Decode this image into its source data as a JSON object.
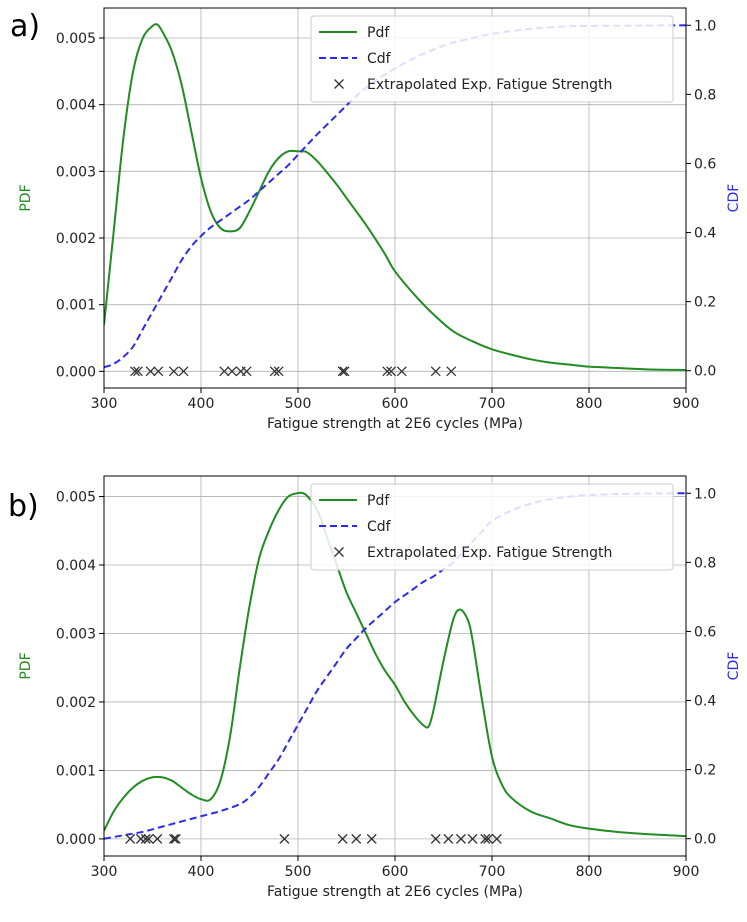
{
  "chart_data": [
    {
      "panel_label": "a)",
      "type": "line",
      "xlabel": "Fatigue strength at 2E6 cycles (MPa)",
      "ylabel_left": "PDF",
      "ylabel_right": "CDF",
      "xlim": [
        300,
        900
      ],
      "ylim_left": [
        -0.00025,
        0.00545
      ],
      "ylim_right": [
        -0.05,
        1.05
      ],
      "xticks": [
        "300",
        "400",
        "500",
        "600",
        "700",
        "800",
        "900"
      ],
      "yticks_left": [
        "0.000",
        "0.001",
        "0.002",
        "0.003",
        "0.004",
        "0.005"
      ],
      "yticks_right": [
        "0.0",
        "0.2",
        "0.4",
        "0.6",
        "0.8",
        "1.0"
      ],
      "grid": true,
      "legend_position": "top-right",
      "colors": {
        "pdf": "#228b22",
        "cdf": "#2b2bf0",
        "points": "#333333"
      },
      "series": [
        {
          "name": "Pdf",
          "axis": "left",
          "style": "solid",
          "x": [
            300,
            310,
            320,
            330,
            340,
            350,
            355,
            360,
            370,
            380,
            390,
            400,
            410,
            420,
            430,
            440,
            450,
            460,
            470,
            480,
            490,
            500,
            505,
            510,
            520,
            530,
            540,
            550,
            560,
            570,
            580,
            590,
            600,
            620,
            640,
            660,
            680,
            700,
            720,
            740,
            760,
            780,
            800,
            830,
            860,
            900
          ],
          "y": [
            0.0007,
            0.0021,
            0.0035,
            0.0045,
            0.005,
            0.00518,
            0.0052,
            0.0051,
            0.0048,
            0.0043,
            0.0036,
            0.0029,
            0.0024,
            0.00215,
            0.0021,
            0.00215,
            0.0024,
            0.0027,
            0.003,
            0.0032,
            0.0033,
            0.0033,
            0.0033,
            0.00328,
            0.00315,
            0.00298,
            0.0028,
            0.0026,
            0.0024,
            0.0022,
            0.00198,
            0.00175,
            0.0015,
            0.00115,
            0.00085,
            0.0006,
            0.00045,
            0.00033,
            0.00025,
            0.00018,
            0.00013,
            0.0001,
            7e-05,
            5e-05,
            3e-05,
            2e-05
          ]
        },
        {
          "name": "Cdf",
          "axis": "right",
          "style": "dashed",
          "x": [
            300,
            310,
            320,
            330,
            340,
            350,
            360,
            370,
            380,
            390,
            400,
            410,
            420,
            430,
            440,
            450,
            460,
            470,
            480,
            490,
            500,
            510,
            520,
            540,
            560,
            580,
            600,
            620,
            640,
            660,
            680,
            700,
            720,
            740,
            760,
            780,
            800,
            850,
            900
          ],
          "y": [
            0.01,
            0.02,
            0.04,
            0.07,
            0.12,
            0.17,
            0.22,
            0.27,
            0.32,
            0.36,
            0.39,
            0.415,
            0.435,
            0.455,
            0.475,
            0.495,
            0.52,
            0.545,
            0.57,
            0.595,
            0.625,
            0.655,
            0.685,
            0.74,
            0.795,
            0.84,
            0.875,
            0.905,
            0.93,
            0.95,
            0.963,
            0.975,
            0.983,
            0.99,
            0.994,
            0.997,
            0.998,
            0.999,
            1.0
          ]
        },
        {
          "name": "Extrapolated Exp. Fatigue Strength",
          "axis": "left",
          "style": "markers",
          "x": [
            332,
            335,
            348,
            356,
            372,
            382,
            424,
            432,
            441,
            447,
            476,
            480,
            546,
            548,
            592,
            596,
            607,
            642,
            658
          ],
          "y": [
            0,
            0,
            0,
            0,
            0,
            0,
            0,
            0,
            0,
            0,
            0,
            0,
            0,
            0,
            0,
            0,
            0,
            0,
            0
          ]
        }
      ]
    },
    {
      "panel_label": "b)",
      "type": "line",
      "xlabel": "Fatigue strength at 2E6 cycles (MPa)",
      "ylabel_left": "PDF",
      "ylabel_right": "CDF",
      "xlim": [
        300,
        900
      ],
      "ylim_left": [
        -0.00025,
        0.0053
      ],
      "ylim_right": [
        -0.05,
        1.05
      ],
      "xticks": [
        "300",
        "400",
        "500",
        "600",
        "700",
        "800",
        "900"
      ],
      "yticks_left": [
        "0.000",
        "0.001",
        "0.002",
        "0.003",
        "0.004",
        "0.005"
      ],
      "yticks_right": [
        "0.0",
        "0.2",
        "0.4",
        "0.6",
        "0.8",
        "1.0"
      ],
      "grid": true,
      "legend_position": "top-right",
      "colors": {
        "pdf": "#228b22",
        "cdf": "#2b2bf0",
        "points": "#333333"
      },
      "series": [
        {
          "name": "Pdf",
          "axis": "left",
          "style": "solid",
          "x": [
            300,
            310,
            320,
            330,
            340,
            350,
            360,
            370,
            380,
            390,
            400,
            410,
            420,
            430,
            440,
            450,
            460,
            470,
            480,
            490,
            500,
            505,
            510,
            520,
            530,
            540,
            550,
            560,
            570,
            580,
            590,
            600,
            610,
            620,
            630,
            635,
            640,
            650,
            660,
            667,
            675,
            680,
            690,
            700,
            710,
            720,
            740,
            760,
            780,
            800,
            830,
            860,
            900
          ],
          "y": [
            0.00012,
            0.0004,
            0.0006,
            0.00075,
            0.00085,
            0.0009,
            0.0009,
            0.00085,
            0.00075,
            0.00065,
            0.00058,
            0.00058,
            0.00085,
            0.0015,
            0.0025,
            0.0034,
            0.0041,
            0.0045,
            0.0048,
            0.005,
            0.00505,
            0.00505,
            0.005,
            0.0048,
            0.0044,
            0.004,
            0.0036,
            0.0033,
            0.003,
            0.0027,
            0.00245,
            0.00225,
            0.002,
            0.0018,
            0.00165,
            0.00165,
            0.0019,
            0.0026,
            0.0032,
            0.00335,
            0.0032,
            0.0029,
            0.002,
            0.0012,
            0.0008,
            0.0006,
            0.0004,
            0.0003,
            0.0002,
            0.00015,
            0.0001,
            7e-05,
            4e-05
          ]
        },
        {
          "name": "Cdf",
          "axis": "right",
          "style": "dashed",
          "x": [
            300,
            320,
            340,
            360,
            380,
            400,
            420,
            440,
            450,
            460,
            470,
            480,
            490,
            500,
            510,
            520,
            530,
            540,
            550,
            560,
            570,
            580,
            590,
            600,
            610,
            620,
            630,
            640,
            650,
            660,
            670,
            680,
            690,
            700,
            720,
            740,
            760,
            780,
            800,
            850,
            900
          ],
          "y": [
            0.0,
            0.01,
            0.02,
            0.035,
            0.05,
            0.065,
            0.08,
            0.1,
            0.12,
            0.15,
            0.19,
            0.23,
            0.28,
            0.33,
            0.38,
            0.43,
            0.47,
            0.51,
            0.55,
            0.58,
            0.61,
            0.635,
            0.66,
            0.685,
            0.705,
            0.725,
            0.745,
            0.76,
            0.78,
            0.8,
            0.83,
            0.86,
            0.89,
            0.92,
            0.95,
            0.97,
            0.983,
            0.99,
            0.995,
            0.999,
            1.0
          ]
        },
        {
          "name": "Extrapolated Exp. Fatigue Strength",
          "axis": "left",
          "style": "markers",
          "x": [
            327,
            338,
            343,
            346,
            355,
            372,
            374,
            486,
            546,
            560,
            576,
            642,
            655,
            668,
            680,
            693,
            696,
            705
          ],
          "y": [
            0,
            0,
            0,
            0,
            0,
            0,
            0,
            0,
            0,
            0,
            0,
            0,
            0,
            0,
            0,
            0,
            0,
            0
          ]
        }
      ]
    }
  ]
}
